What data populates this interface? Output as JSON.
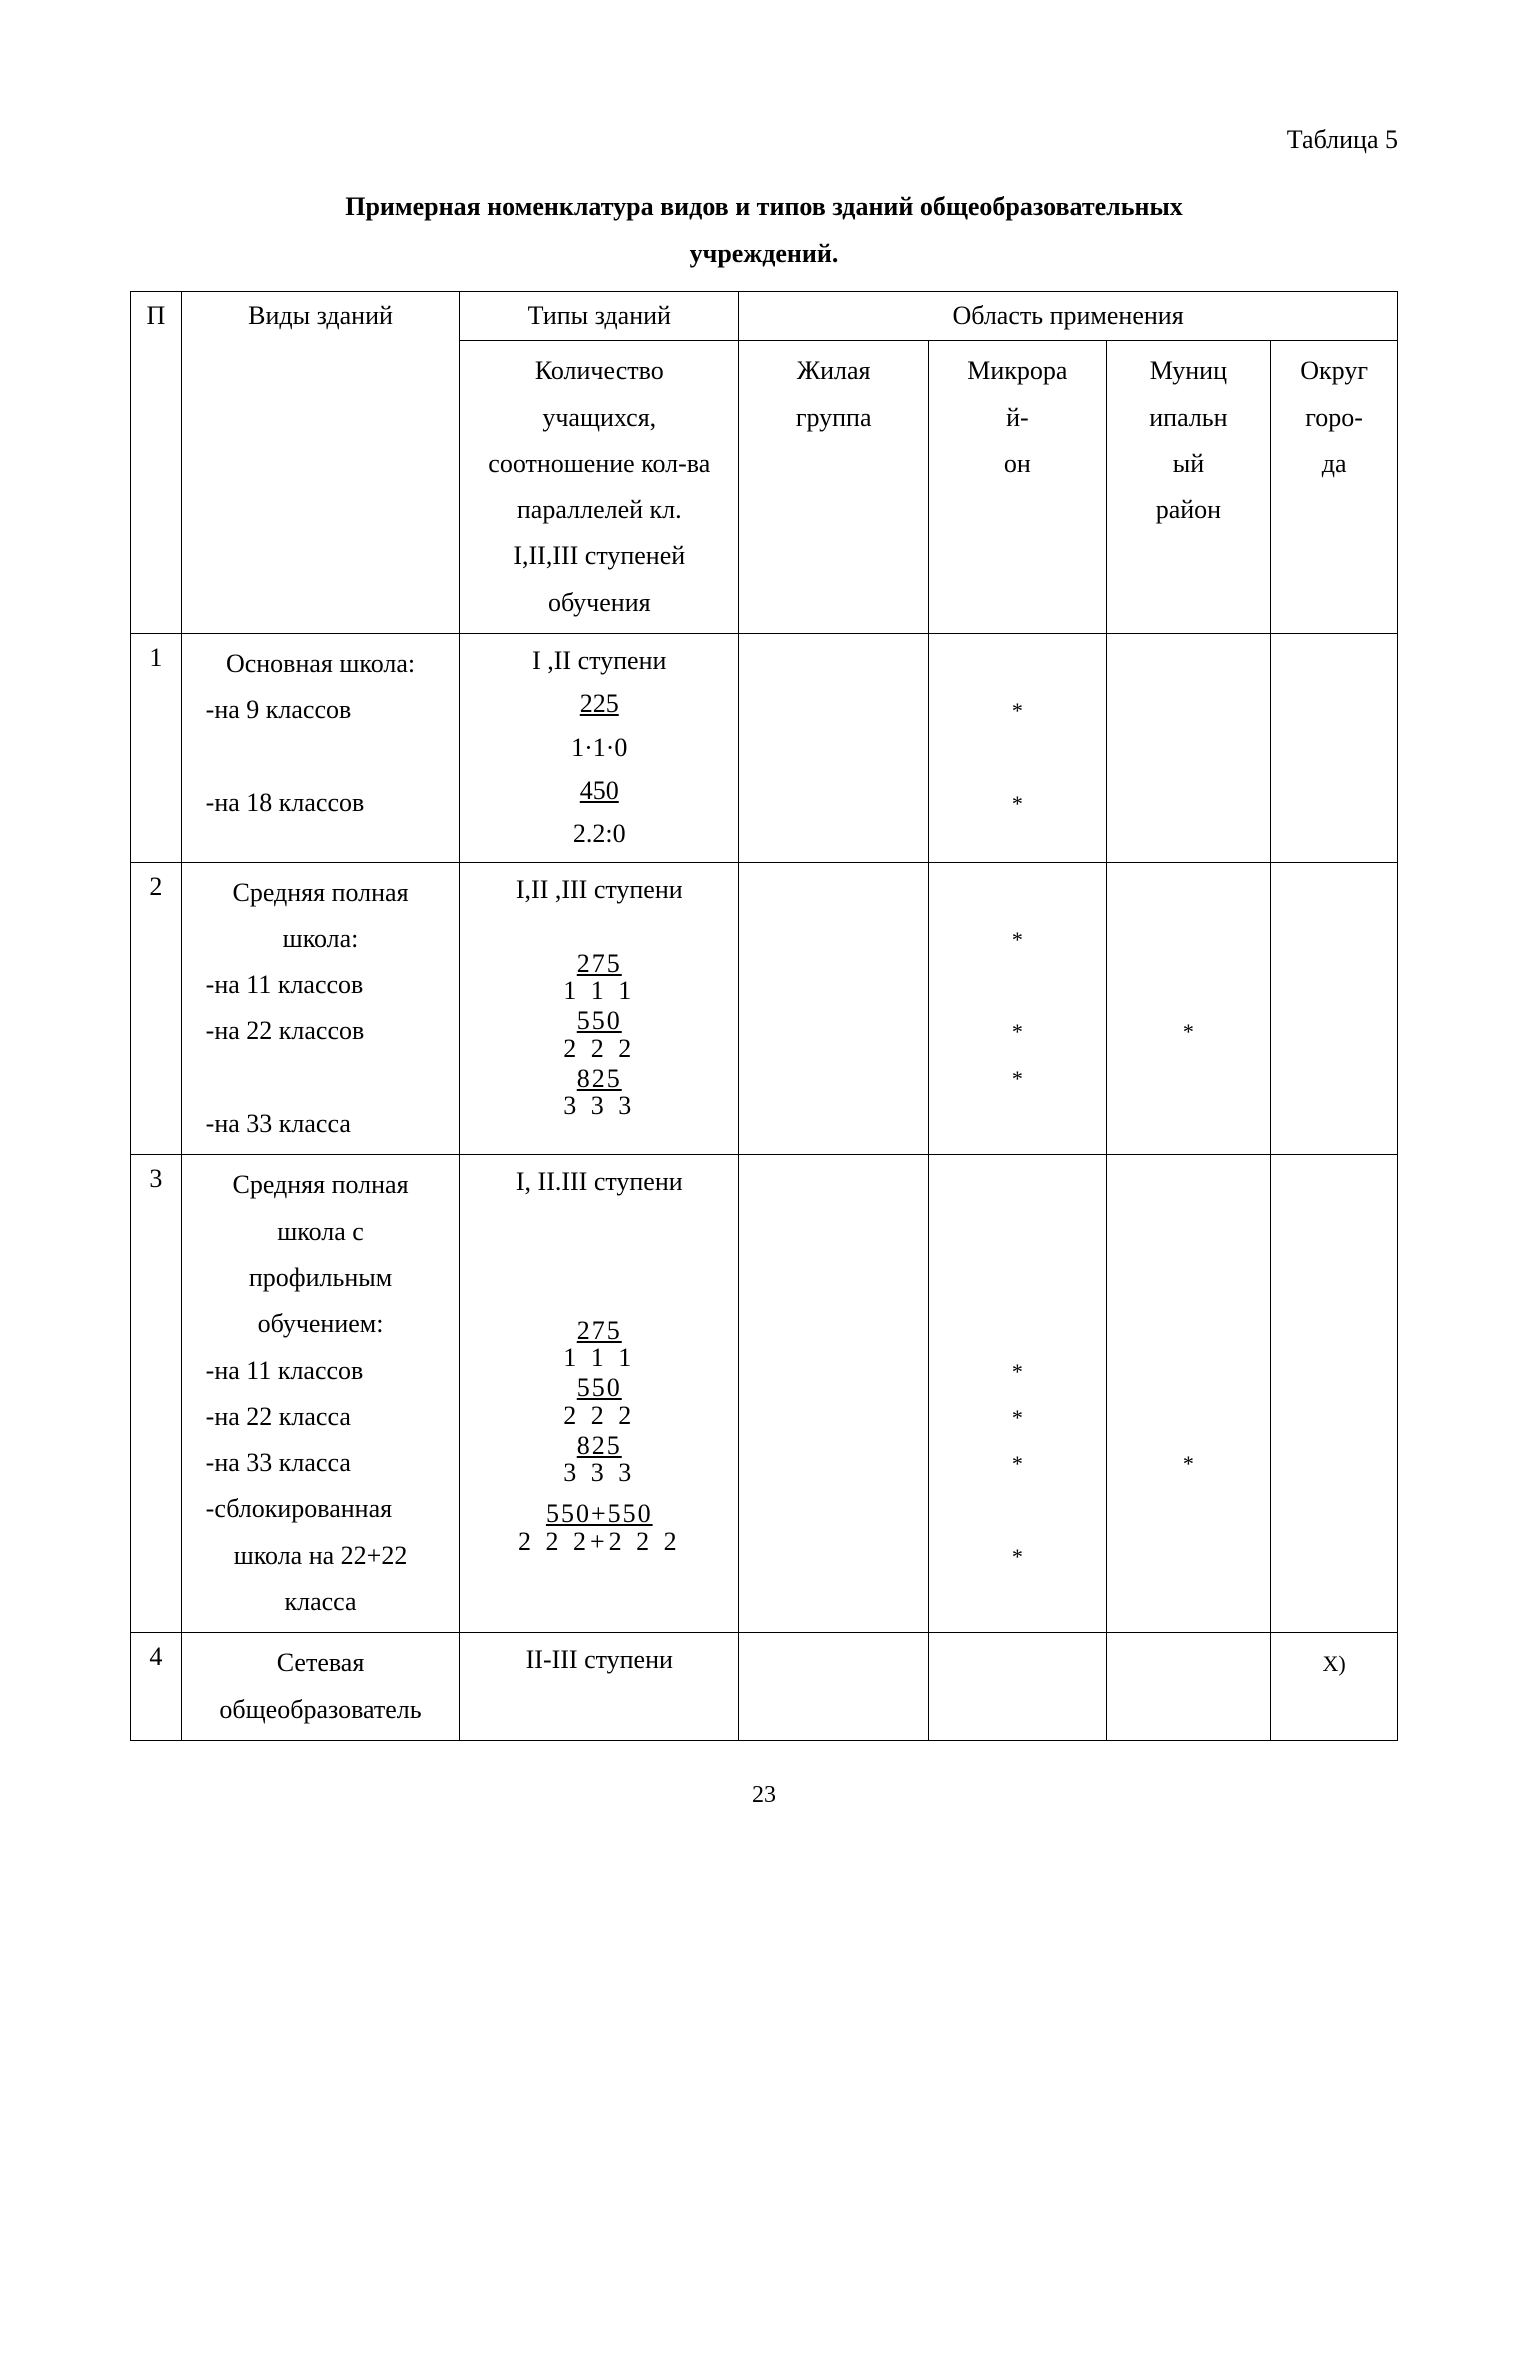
{
  "meta": {
    "background_color": "#ffffff",
    "text_color": "#000000",
    "font_family": "Times New Roman",
    "base_fontsize_pt": 12,
    "page_number": "23"
  },
  "labels": {
    "table_label": "Таблица 5",
    "title_line1": "Примерная номенклатура видов и типов зданий общеобразовательных",
    "title_line2": "учреждений."
  },
  "table": {
    "type": "table",
    "border_color": "#000000",
    "columns": [
      {
        "id": "num",
        "width_pct": 4,
        "label_lines": [
          "П"
        ]
      },
      {
        "id": "kind",
        "width_pct": 22,
        "label_lines": [
          "Виды зданий"
        ]
      },
      {
        "id": "type",
        "width_pct": 22,
        "label_lines": [
          "Типы зданий",
          "Количество",
          "учащихся,",
          "соотношение кол-ва",
          "параллелей кл.",
          "I,II,III ступеней",
          "обучения"
        ]
      },
      {
        "id": "scope",
        "width_pct": 52,
        "label_lines": [
          "Область применения"
        ]
      }
    ],
    "scope_subcols": [
      {
        "id": "zhilaya",
        "label_lines": [
          "Жилая",
          "группа"
        ]
      },
      {
        "id": "mikro",
        "label_lines": [
          "Микрора",
          "й-",
          "он"
        ]
      },
      {
        "id": "munic",
        "label_lines": [
          "Муниц",
          "ипальн",
          "ый",
          "район"
        ]
      },
      {
        "id": "okrug",
        "label_lines": [
          "Округ",
          "горо-",
          "да"
        ]
      }
    ],
    "rows": [
      {
        "num": "1",
        "kind_lines": [
          "Основная школа:",
          "-на 9 классов",
          "",
          "-на 18 классов"
        ],
        "type_lines": [
          {
            "kind": "plain",
            "text": "I ,II ступени"
          },
          {
            "kind": "uline",
            "text": "225"
          },
          {
            "kind": "plain",
            "text": "1·1·0"
          },
          {
            "kind": "uline",
            "text": "450"
          },
          {
            "kind": "plain",
            "text": "2.2:0"
          }
        ],
        "marks": {
          "zhilaya": [
            "",
            "",
            "",
            "",
            ""
          ],
          "mikro": [
            "",
            "*",
            "",
            "*",
            ""
          ],
          "munic": [
            "",
            "",
            "",
            "",
            ""
          ],
          "okrug": [
            "",
            "",
            "",
            "",
            ""
          ]
        }
      },
      {
        "num": "2",
        "kind_lines": [
          "Средняя полная",
          "школа:",
          "-на 11 классов",
          "-на 22 классов",
          "",
          "-на 33 класса"
        ],
        "type_lines": [
          {
            "kind": "plain",
            "text": "I,II ,III ступени"
          },
          {
            "kind": "spacer"
          },
          {
            "kind": "frac",
            "num": "275",
            "den": "1 1 1"
          },
          {
            "kind": "frac",
            "num": "550",
            "den": "2 2 2"
          },
          {
            "kind": "frac",
            "num": "825",
            "den": "3 3 3"
          }
        ],
        "marks": {
          "zhilaya": [
            "",
            "",
            "",
            "",
            "",
            ""
          ],
          "mikro": [
            "",
            "*",
            "",
            "*",
            "*",
            ""
          ],
          "munic": [
            "",
            "",
            "",
            "*",
            "",
            ""
          ],
          "okrug": [
            "",
            "",
            "",
            "",
            "",
            ""
          ]
        }
      },
      {
        "num": "3",
        "kind_lines": [
          "Средняя полная",
          "школа с",
          "профильным",
          "обучением:",
          "-на 11 классов",
          "-на 22 класса",
          "-на 33 класса",
          "-сблокированная",
          "школа на 22+22",
          "класса"
        ],
        "type_lines": [
          {
            "kind": "plain",
            "text": "I, II.III ступени"
          },
          {
            "kind": "spacer"
          },
          {
            "kind": "spacer"
          },
          {
            "kind": "spacer"
          },
          {
            "kind": "frac",
            "num": "275",
            "den": "1 1 1"
          },
          {
            "kind": "frac",
            "num": "550",
            "den": "2 2 2"
          },
          {
            "kind": "frac",
            "num": "825",
            "den": "3 3 3"
          },
          {
            "kind": "spacer-sm"
          },
          {
            "kind": "frac",
            "num": "550+550",
            "den": "2 2 2+2 2 2"
          }
        ],
        "marks": {
          "zhilaya": [
            "",
            "",
            "",
            "",
            "",
            "",
            "",
            "",
            "",
            ""
          ],
          "mikro": [
            "",
            "",
            "",
            "",
            "*",
            "*",
            "*",
            "",
            "*",
            ""
          ],
          "munic": [
            "",
            "",
            "",
            "",
            "",
            "",
            "*",
            "",
            "",
            ""
          ],
          "okrug": [
            "",
            "",
            "",
            "",
            "",
            "",
            "",
            "",
            "",
            ""
          ]
        }
      },
      {
        "num": "4",
        "kind_lines": [
          "Сетевая",
          "общеобразователь"
        ],
        "type_lines": [
          {
            "kind": "plain",
            "text": "II-III ступени"
          }
        ],
        "marks": {
          "zhilaya": [
            "",
            ""
          ],
          "mikro": [
            "",
            ""
          ],
          "munic": [
            "",
            ""
          ],
          "okrug": [
            "X)",
            ""
          ]
        }
      }
    ]
  }
}
